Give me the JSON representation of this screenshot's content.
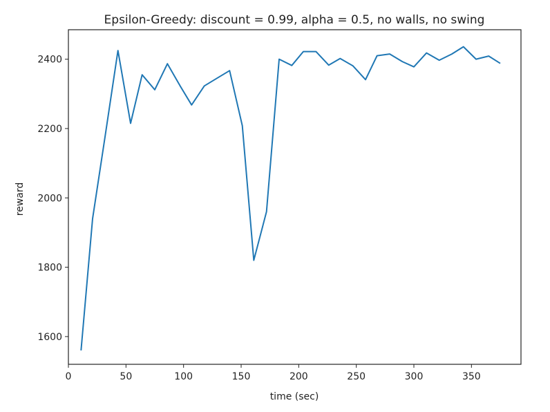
{
  "chart_data": {
    "type": "line",
    "title": "Epsilon-Greedy: discount = 0.99, alpha = 0.5, no walls, no swing",
    "xlabel": "time (sec)",
    "ylabel": "reward",
    "xlim": [
      0,
      393
    ],
    "ylim": [
      1520,
      2485
    ],
    "xticks": [
      0,
      50,
      100,
      150,
      200,
      250,
      300,
      350
    ],
    "yticks": [
      1600,
      1800,
      2000,
      2200,
      2400
    ],
    "grid": false,
    "colors": {
      "line": "#1f77b4",
      "axes": "#222222",
      "background": "#ffffff"
    },
    "series": [
      {
        "name": "reward",
        "x": [
          11,
          21,
          32,
          43,
          54,
          64,
          75,
          86,
          97,
          107,
          118,
          129,
          140,
          151,
          161,
          172,
          183,
          194,
          204,
          215,
          226,
          236,
          247,
          258,
          268,
          279,
          290,
          300,
          311,
          322,
          333,
          343,
          354,
          365,
          375
        ],
        "y": [
          1560,
          1940,
          2180,
          2425,
          2215,
          2355,
          2312,
          2387,
          2323,
          2268,
          2323,
          2345,
          2367,
          2208,
          1820,
          1960,
          2400,
          2382,
          2422,
          2422,
          2383,
          2402,
          2381,
          2341,
          2410,
          2415,
          2393,
          2378,
          2418,
          2397,
          2415,
          2436,
          2400,
          2409,
          2388
        ]
      }
    ]
  }
}
